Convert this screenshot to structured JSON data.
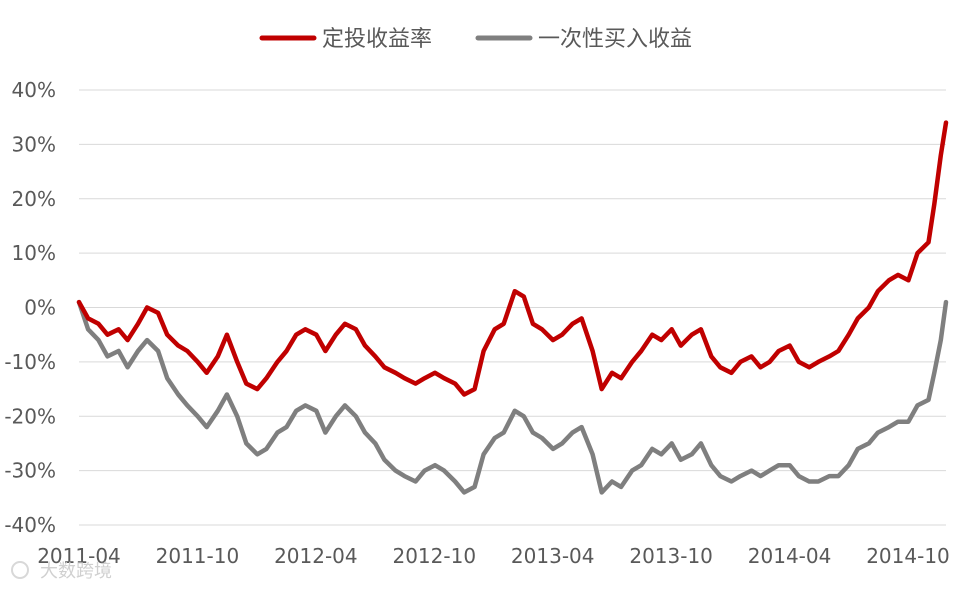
{
  "chart_data": {
    "type": "line",
    "title": "",
    "xlabel": "",
    "ylabel": "",
    "ylim": [
      -40,
      40
    ],
    "y_ticks": [
      40,
      30,
      20,
      10,
      0,
      -10,
      -20,
      -30,
      -40
    ],
    "y_tick_labels": [
      "40%",
      "30%",
      "20%",
      "10%",
      "0%",
      "-10%",
      "-20%",
      "-30%",
      "-40%"
    ],
    "x_tick_labels": [
      "2011-04",
      "2011-10",
      "2012-04",
      "2012-10",
      "2013-04",
      "2013-10",
      "2014-04",
      "2014-10"
    ],
    "xlim": [
      "2011-04-01",
      "2014-11-28"
    ],
    "grid": "horizontal",
    "legend_position": "top",
    "series": [
      {
        "name": "定投收益率",
        "color": "#c00000",
        "points": [
          [
            "2011-04-01",
            1
          ],
          [
            "2011-04-15",
            -2
          ],
          [
            "2011-05-01",
            -3
          ],
          [
            "2011-05-15",
            -5
          ],
          [
            "2011-06-01",
            -4
          ],
          [
            "2011-06-15",
            -6
          ],
          [
            "2011-07-01",
            -3
          ],
          [
            "2011-07-15",
            0
          ],
          [
            "2011-08-01",
            -1
          ],
          [
            "2011-08-15",
            -5
          ],
          [
            "2011-09-01",
            -7
          ],
          [
            "2011-09-15",
            -8
          ],
          [
            "2011-10-01",
            -10
          ],
          [
            "2011-10-15",
            -12
          ],
          [
            "2011-11-01",
            -9
          ],
          [
            "2011-11-15",
            -5
          ],
          [
            "2011-12-01",
            -10
          ],
          [
            "2011-12-15",
            -14
          ],
          [
            "2012-01-01",
            -15
          ],
          [
            "2012-01-15",
            -13
          ],
          [
            "2012-02-01",
            -10
          ],
          [
            "2012-02-15",
            -8
          ],
          [
            "2012-03-01",
            -5
          ],
          [
            "2012-03-15",
            -4
          ],
          [
            "2012-04-01",
            -5
          ],
          [
            "2012-04-15",
            -8
          ],
          [
            "2012-05-01",
            -5
          ],
          [
            "2012-05-15",
            -3
          ],
          [
            "2012-06-01",
            -4
          ],
          [
            "2012-06-15",
            -7
          ],
          [
            "2012-07-01",
            -9
          ],
          [
            "2012-07-15",
            -11
          ],
          [
            "2012-08-01",
            -12
          ],
          [
            "2012-08-15",
            -13
          ],
          [
            "2012-09-01",
            -14
          ],
          [
            "2012-09-15",
            -13
          ],
          [
            "2012-10-01",
            -12
          ],
          [
            "2012-10-15",
            -13
          ],
          [
            "2012-11-01",
            -14
          ],
          [
            "2012-11-15",
            -16
          ],
          [
            "2012-12-01",
            -15
          ],
          [
            "2012-12-15",
            -8
          ],
          [
            "2013-01-01",
            -4
          ],
          [
            "2013-01-15",
            -3
          ],
          [
            "2013-02-01",
            3
          ],
          [
            "2013-02-15",
            2
          ],
          [
            "2013-03-01",
            -3
          ],
          [
            "2013-03-15",
            -4
          ],
          [
            "2013-04-01",
            -6
          ],
          [
            "2013-04-15",
            -5
          ],
          [
            "2013-05-01",
            -3
          ],
          [
            "2013-05-15",
            -2
          ],
          [
            "2013-06-01",
            -8
          ],
          [
            "2013-06-15",
            -15
          ],
          [
            "2013-07-01",
            -12
          ],
          [
            "2013-07-15",
            -13
          ],
          [
            "2013-08-01",
            -10
          ],
          [
            "2013-08-15",
            -8
          ],
          [
            "2013-09-01",
            -5
          ],
          [
            "2013-09-15",
            -6
          ],
          [
            "2013-10-01",
            -4
          ],
          [
            "2013-10-15",
            -7
          ],
          [
            "2013-11-01",
            -5
          ],
          [
            "2013-11-15",
            -4
          ],
          [
            "2013-12-01",
            -9
          ],
          [
            "2013-12-15",
            -11
          ],
          [
            "2014-01-01",
            -12
          ],
          [
            "2014-01-15",
            -10
          ],
          [
            "2014-02-01",
            -9
          ],
          [
            "2014-02-15",
            -11
          ],
          [
            "2014-03-01",
            -10
          ],
          [
            "2014-03-15",
            -8
          ],
          [
            "2014-04-01",
            -7
          ],
          [
            "2014-04-15",
            -10
          ],
          [
            "2014-05-01",
            -11
          ],
          [
            "2014-05-15",
            -10
          ],
          [
            "2014-06-01",
            -9
          ],
          [
            "2014-06-15",
            -8
          ],
          [
            "2014-07-01",
            -5
          ],
          [
            "2014-07-15",
            -2
          ],
          [
            "2014-08-01",
            0
          ],
          [
            "2014-08-15",
            3
          ],
          [
            "2014-09-01",
            5
          ],
          [
            "2014-09-15",
            6
          ],
          [
            "2014-10-01",
            5
          ],
          [
            "2014-10-15",
            10
          ],
          [
            "2014-11-01",
            12
          ],
          [
            "2014-11-10",
            19
          ],
          [
            "2014-11-20",
            28
          ],
          [
            "2014-11-28",
            34
          ]
        ]
      },
      {
        "name": "一次性买入收益",
        "color": "#7f7f7f",
        "points": [
          [
            "2011-04-01",
            1
          ],
          [
            "2011-04-15",
            -4
          ],
          [
            "2011-05-01",
            -6
          ],
          [
            "2011-05-15",
            -9
          ],
          [
            "2011-06-01",
            -8
          ],
          [
            "2011-06-15",
            -11
          ],
          [
            "2011-07-01",
            -8
          ],
          [
            "2011-07-15",
            -6
          ],
          [
            "2011-08-01",
            -8
          ],
          [
            "2011-08-15",
            -13
          ],
          [
            "2011-09-01",
            -16
          ],
          [
            "2011-09-15",
            -18
          ],
          [
            "2011-10-01",
            -20
          ],
          [
            "2011-10-15",
            -22
          ],
          [
            "2011-11-01",
            -19
          ],
          [
            "2011-11-15",
            -16
          ],
          [
            "2011-12-01",
            -20
          ],
          [
            "2011-12-15",
            -25
          ],
          [
            "2012-01-01",
            -27
          ],
          [
            "2012-01-15",
            -26
          ],
          [
            "2012-02-01",
            -23
          ],
          [
            "2012-02-15",
            -22
          ],
          [
            "2012-03-01",
            -19
          ],
          [
            "2012-03-15",
            -18
          ],
          [
            "2012-04-01",
            -19
          ],
          [
            "2012-04-15",
            -23
          ],
          [
            "2012-05-01",
            -20
          ],
          [
            "2012-05-15",
            -18
          ],
          [
            "2012-06-01",
            -20
          ],
          [
            "2012-06-15",
            -23
          ],
          [
            "2012-07-01",
            -25
          ],
          [
            "2012-07-15",
            -28
          ],
          [
            "2012-08-01",
            -30
          ],
          [
            "2012-08-15",
            -31
          ],
          [
            "2012-09-01",
            -32
          ],
          [
            "2012-09-15",
            -30
          ],
          [
            "2012-10-01",
            -29
          ],
          [
            "2012-10-15",
            -30
          ],
          [
            "2012-11-01",
            -32
          ],
          [
            "2012-11-15",
            -34
          ],
          [
            "2012-12-01",
            -33
          ],
          [
            "2012-12-15",
            -27
          ],
          [
            "2013-01-01",
            -24
          ],
          [
            "2013-01-15",
            -23
          ],
          [
            "2013-02-01",
            -19
          ],
          [
            "2013-02-15",
            -20
          ],
          [
            "2013-03-01",
            -23
          ],
          [
            "2013-03-15",
            -24
          ],
          [
            "2013-04-01",
            -26
          ],
          [
            "2013-04-15",
            -25
          ],
          [
            "2013-05-01",
            -23
          ],
          [
            "2013-05-15",
            -22
          ],
          [
            "2013-06-01",
            -27
          ],
          [
            "2013-06-15",
            -34
          ],
          [
            "2013-07-01",
            -32
          ],
          [
            "2013-07-15",
            -33
          ],
          [
            "2013-08-01",
            -30
          ],
          [
            "2013-08-15",
            -29
          ],
          [
            "2013-09-01",
            -26
          ],
          [
            "2013-09-15",
            -27
          ],
          [
            "2013-10-01",
            -25
          ],
          [
            "2013-10-15",
            -28
          ],
          [
            "2013-11-01",
            -27
          ],
          [
            "2013-11-15",
            -25
          ],
          [
            "2013-12-01",
            -29
          ],
          [
            "2013-12-15",
            -31
          ],
          [
            "2014-01-01",
            -32
          ],
          [
            "2014-01-15",
            -31
          ],
          [
            "2014-02-01",
            -30
          ],
          [
            "2014-02-15",
            -31
          ],
          [
            "2014-03-01",
            -30
          ],
          [
            "2014-03-15",
            -29
          ],
          [
            "2014-04-01",
            -29
          ],
          [
            "2014-04-15",
            -31
          ],
          [
            "2014-05-01",
            -32
          ],
          [
            "2014-05-15",
            -32
          ],
          [
            "2014-06-01",
            -31
          ],
          [
            "2014-06-15",
            -31
          ],
          [
            "2014-07-01",
            -29
          ],
          [
            "2014-07-15",
            -26
          ],
          [
            "2014-08-01",
            -25
          ],
          [
            "2014-08-15",
            -23
          ],
          [
            "2014-09-01",
            -22
          ],
          [
            "2014-09-15",
            -21
          ],
          [
            "2014-10-01",
            -21
          ],
          [
            "2014-10-15",
            -18
          ],
          [
            "2014-11-01",
            -17
          ],
          [
            "2014-11-10",
            -12
          ],
          [
            "2014-11-20",
            -6
          ],
          [
            "2014-11-28",
            1
          ]
        ]
      }
    ]
  },
  "watermark": {
    "text": "大数跨境"
  }
}
